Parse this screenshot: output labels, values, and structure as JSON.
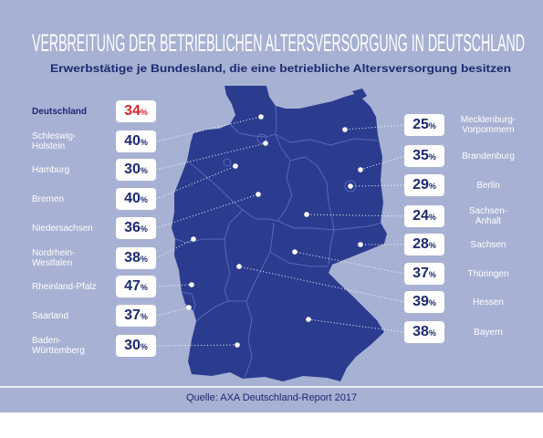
{
  "title": "VERBREITUNG DER BETRIEBLICHEN ALTERSVERSORGUNG IN DEUTSCHLAND",
  "subtitle": "Erwerbstätige je Bundesland, die eine betriebliche Altersversorgung besitzen",
  "unit": "%",
  "national": {
    "label": "Deutschland",
    "value": 34
  },
  "left_states": [
    {
      "label": "Schleswig-\nHolstein",
      "value": 40
    },
    {
      "label": "Hamburg",
      "value": 30
    },
    {
      "label": "Bremen",
      "value": 40
    },
    {
      "label": "Niedersachsen",
      "value": 36
    },
    {
      "label": "Nordrhein-\nWestfalen",
      "value": 38
    },
    {
      "label": "Rheinland-Pfalz",
      "value": 47
    },
    {
      "label": "Saarland",
      "value": 37
    },
    {
      "label": "Baden-\nWürttemberg",
      "value": 30
    }
  ],
  "right_states": [
    {
      "label": "Mecklenburg-\nVorpommern",
      "value": 25
    },
    {
      "label": "Brandenburg",
      "value": 35
    },
    {
      "label": "Berlin",
      "value": 29
    },
    {
      "label": "Sachsen-\nAnhalt",
      "value": 24
    },
    {
      "label": "Sachsen",
      "value": 28
    },
    {
      "label": "Thüringen",
      "value": 37
    },
    {
      "label": "Hessen",
      "value": 39
    },
    {
      "label": "Bayern",
      "value": 38
    }
  ],
  "source": "Quelle: AXA Deutschland-Report 2017",
  "colors": {
    "background": "#a7b1d3",
    "map": "#2b3c8f",
    "highlight": "#d7252b",
    "text_dark": "#1b2a70"
  }
}
